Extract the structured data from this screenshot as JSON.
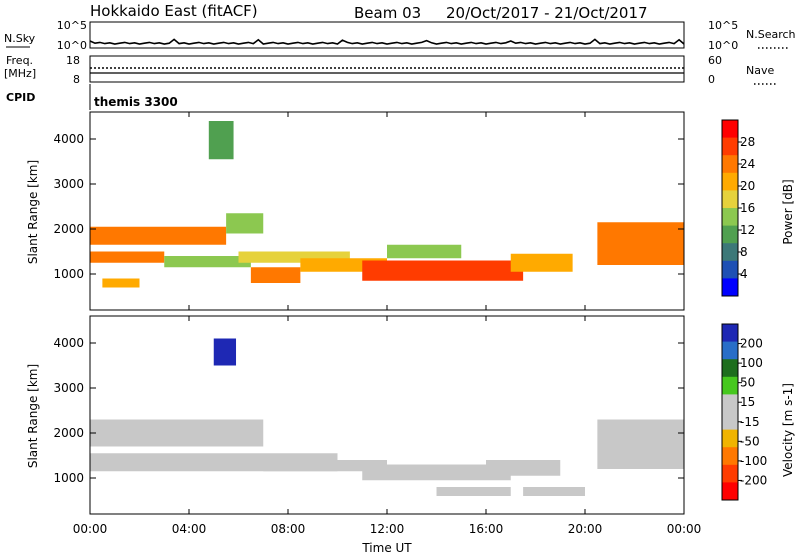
{
  "header": {
    "station": "Hokkaido East (fitACF)",
    "beam": "Beam 03",
    "date_range": "20/Oct/2017 - 21/Oct/2017"
  },
  "noise_panel": {
    "left_label": "N.Sky",
    "right_label": "N.Search",
    "ticks_left": [
      "10^5",
      "10^0"
    ],
    "ticks_right": [
      "10^5",
      "10^0"
    ]
  },
  "freq_panel": {
    "left_label_1": "Freq.",
    "left_label_2": "[MHz]",
    "right_label": "Nave",
    "ticks_left": [
      "18",
      "8"
    ],
    "ticks_right": [
      "60",
      "0"
    ]
  },
  "cpid": {
    "label": "CPID",
    "value": "themis 3300"
  },
  "x_axis": {
    "label": "Time UT",
    "ticks": [
      "00:00",
      "04:00",
      "08:00",
      "12:00",
      "16:00",
      "20:00",
      "00:00"
    ]
  },
  "power_panel": {
    "ylabel": "Slant Range [km]",
    "yticks": [
      "4000",
      "3000",
      "2000",
      "1000"
    ],
    "colorbar_label": "Power [dB]",
    "colorbar_ticks": [
      "28",
      "24",
      "20",
      "16",
      "12",
      "8",
      "4"
    ],
    "colors": [
      "#ff0000",
      "#ff3c00",
      "#ff7800",
      "#ffaa00",
      "#e6d23c",
      "#8cc850",
      "#50a050",
      "#3c7878",
      "#1e50b4",
      "#0000ff"
    ]
  },
  "velocity_panel": {
    "ylabel": "Slant Range [km]",
    "yticks": [
      "4000",
      "3000",
      "2000",
      "1000"
    ],
    "colorbar_label": "Velocity [m s-1]",
    "colorbar_ticks": [
      "200",
      "100",
      "50",
      "15",
      "-15",
      "-50",
      "-100",
      "-200"
    ],
    "colors": [
      "#1e28b4",
      "#286ec8",
      "#1e6e1e",
      "#46c81e",
      "#c8c8c8",
      "#c8c8c8",
      "#f0b400",
      "#ff7800",
      "#ff3c00",
      "#ff0000"
    ],
    "ground_scatter_color": "#c8c8c8"
  },
  "chart_data": {
    "type": "heatmap",
    "x_unit": "hours UT",
    "xlim": [
      0,
      24
    ],
    "ylim": [
      200,
      4600
    ],
    "panels": [
      {
        "name": "Power",
        "unit": "dB",
        "clim": [
          0,
          32
        ],
        "regions": [
          {
            "t": [
              0.0,
              5.5
            ],
            "r": [
              1650,
              2050
            ],
            "value": 24
          },
          {
            "t": [
              5.5,
              7.0
            ],
            "r": [
              1900,
              2350
            ],
            "value": 14
          },
          {
            "t": [
              0.0,
              3.0
            ],
            "r": [
              1250,
              1500
            ],
            "value": 24
          },
          {
            "t": [
              3.0,
              6.5
            ],
            "r": [
              1150,
              1400
            ],
            "value": 16
          },
          {
            "t": [
              6.0,
              10.5
            ],
            "r": [
              1250,
              1500
            ],
            "value": 18
          },
          {
            "t": [
              6.5,
              8.5
            ],
            "r": [
              800,
              1150
            ],
            "value": 24
          },
          {
            "t": [
              8.5,
              12.0
            ],
            "r": [
              1050,
              1350
            ],
            "value": 22
          },
          {
            "t": [
              11.0,
              17.5
            ],
            "r": [
              850,
              1300
            ],
            "value": 28
          },
          {
            "t": [
              17.0,
              19.5
            ],
            "r": [
              1050,
              1450
            ],
            "value": 20
          },
          {
            "t": [
              12.0,
              15.0
            ],
            "r": [
              1350,
              1650
            ],
            "value": 14
          },
          {
            "t": [
              0.5,
              2.0
            ],
            "r": [
              700,
              900
            ],
            "value": 22
          },
          {
            "t": [
              20.5,
              24.0
            ],
            "r": [
              1200,
              2150
            ],
            "value": 24
          },
          {
            "t": [
              4.8,
              5.8
            ],
            "r": [
              3550,
              4400
            ],
            "value": 12
          }
        ]
      },
      {
        "name": "Velocity",
        "unit": "m s-1",
        "clim": [
          -200,
          200
        ],
        "regions": [
          {
            "t": [
              0.0,
              7.0
            ],
            "r": [
              1700,
              2300
            ],
            "value": 0,
            "ground_scatter": true
          },
          {
            "t": [
              0.0,
              10.0
            ],
            "r": [
              1150,
              1550
            ],
            "value": 0,
            "ground_scatter": true
          },
          {
            "t": [
              7.0,
              12.0
            ],
            "r": [
              1150,
              1400
            ],
            "value": 0,
            "ground_scatter": true
          },
          {
            "t": [
              11.0,
              17.0
            ],
            "r": [
              950,
              1300
            ],
            "value": 30
          },
          {
            "t": [
              16.0,
              19.0
            ],
            "r": [
              1050,
              1400
            ],
            "value": 0,
            "ground_scatter": true
          },
          {
            "t": [
              14.0,
              17.0
            ],
            "r": [
              600,
              800
            ],
            "value": 30
          },
          {
            "t": [
              17.5,
              20.0
            ],
            "r": [
              600,
              800
            ],
            "value": 0,
            "ground_scatter": true
          },
          {
            "t": [
              20.5,
              24.0
            ],
            "r": [
              1200,
              2300
            ],
            "value": 0,
            "ground_scatter": true
          },
          {
            "t": [
              5.0,
              5.9
            ],
            "r": [
              3500,
              4100
            ],
            "value": 170
          }
        ]
      }
    ]
  }
}
